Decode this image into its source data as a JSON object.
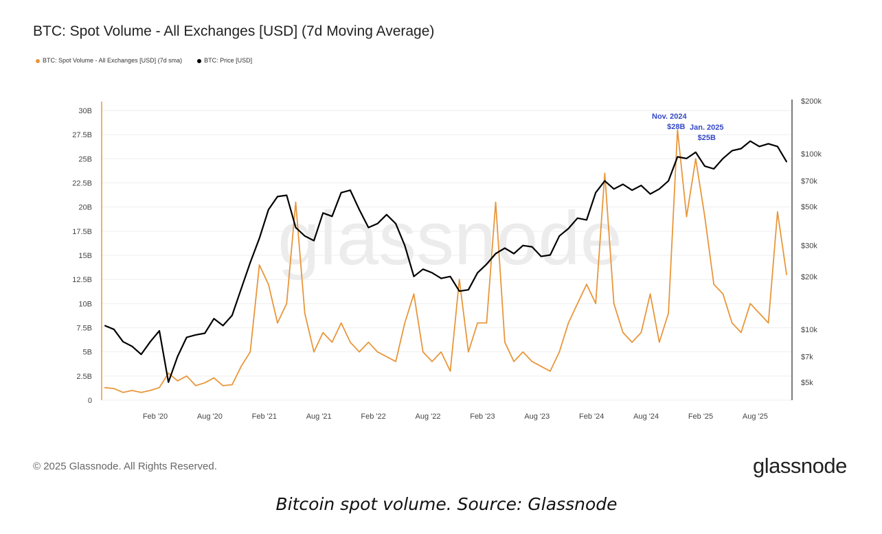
{
  "chart_data": {
    "type": "line",
    "title": "BTC: Spot Volume - All Exchanges [USD] (7d Moving Average)",
    "legend_position": "top-left",
    "grid": true,
    "watermark": "glassnode",
    "x_ticks": [
      "Feb '20",
      "Aug '20",
      "Feb '21",
      "Aug '21",
      "Feb '22",
      "Aug '22",
      "Feb '23",
      "Aug '23",
      "Feb '24",
      "Aug '24",
      "Feb '25",
      "Aug '25"
    ],
    "y_left": {
      "ticks": [
        "0",
        "2.5B",
        "5B",
        "7.5B",
        "10B",
        "12.5B",
        "15B",
        "17.5B",
        "20B",
        "22.5B",
        "25B",
        "27.5B",
        "30B"
      ],
      "range": [
        0,
        30
      ],
      "unit": "B USD"
    },
    "y_right": {
      "ticks": [
        "$5k",
        "$7k",
        "$10k",
        "$20k",
        "$30k",
        "$50k",
        "$70k",
        "$100k",
        "$200k"
      ],
      "scale": "log",
      "range": [
        4500,
        200000
      ]
    },
    "annotations": [
      {
        "date": "2024-11",
        "line1": "Nov. 2024",
        "line2": "$28B"
      },
      {
        "date": "2025-01",
        "line1": "Jan. 2025",
        "line2": "$25B"
      }
    ],
    "dates": [
      "2019-08",
      "2019-09",
      "2019-10",
      "2019-11",
      "2019-12",
      "2020-01",
      "2020-02",
      "2020-03",
      "2020-04",
      "2020-05",
      "2020-06",
      "2020-07",
      "2020-08",
      "2020-09",
      "2020-10",
      "2020-11",
      "2020-12",
      "2021-01",
      "2021-02",
      "2021-03",
      "2021-04",
      "2021-05",
      "2021-06",
      "2021-07",
      "2021-08",
      "2021-09",
      "2021-10",
      "2021-11",
      "2021-12",
      "2022-01",
      "2022-02",
      "2022-03",
      "2022-04",
      "2022-05",
      "2022-06",
      "2022-07",
      "2022-08",
      "2022-09",
      "2022-10",
      "2022-11",
      "2022-12",
      "2023-01",
      "2023-02",
      "2023-03",
      "2023-04",
      "2023-05",
      "2023-06",
      "2023-07",
      "2023-08",
      "2023-09",
      "2023-10",
      "2023-11",
      "2023-12",
      "2024-01",
      "2024-02",
      "2024-03",
      "2024-04",
      "2024-05",
      "2024-06",
      "2024-07",
      "2024-08",
      "2024-09",
      "2024-10",
      "2024-11",
      "2024-12",
      "2025-01",
      "2025-02",
      "2025-03",
      "2025-04",
      "2025-05",
      "2025-06",
      "2025-07",
      "2025-08",
      "2025-09",
      "2025-10",
      "2025-11"
    ],
    "series": [
      {
        "name": "BTC: Spot Volume - All Exchanges [USD] (7d sma)",
        "color": "#e8963a",
        "axis": "left",
        "values": [
          1.3,
          1.2,
          0.8,
          1.0,
          0.8,
          1.0,
          1.3,
          2.8,
          2.0,
          2.5,
          1.5,
          1.8,
          2.3,
          1.5,
          1.6,
          3.5,
          5.0,
          14,
          12,
          8,
          10,
          20.5,
          9,
          5,
          7,
          6,
          8,
          6,
          5,
          6,
          5,
          4.5,
          4,
          8,
          11,
          5,
          4,
          5,
          3,
          12.5,
          5,
          8,
          8,
          20.5,
          6,
          4,
          5,
          4,
          3.5,
          3,
          5,
          8,
          10,
          12,
          10,
          23.5,
          10,
          7,
          6,
          7,
          11,
          6,
          9,
          28,
          19,
          25,
          19,
          12,
          11,
          8,
          7,
          10,
          9,
          8,
          19.5,
          13
        ]
      },
      {
        "name": "BTC: Price [USD]",
        "color": "#000000",
        "axis": "right",
        "values": [
          10500,
          10000,
          8500,
          8000,
          7200,
          8500,
          9800,
          5000,
          7000,
          9000,
          9300,
          9500,
          11500,
          10500,
          12000,
          17000,
          24000,
          33000,
          48000,
          57000,
          58000,
          38000,
          34000,
          32000,
          46000,
          44000,
          60000,
          62000,
          48000,
          38000,
          40000,
          45000,
          40000,
          30000,
          20000,
          22000,
          21000,
          19500,
          20000,
          16500,
          16800,
          21000,
          23500,
          27000,
          29000,
          27000,
          30000,
          29500,
          26000,
          26500,
          34000,
          37500,
          43000,
          42000,
          60000,
          70000,
          63000,
          67000,
          62000,
          66000,
          59000,
          63000,
          70000,
          96000,
          94000,
          102000,
          85000,
          82000,
          94000,
          104000,
          107000,
          118000,
          110000,
          114000,
          110000,
          90000
        ]
      }
    ]
  },
  "footer": {
    "copyright": "© 2025 Glassnode. All Rights Reserved.",
    "logo": "glassnode",
    "caption": "Bitcoin spot volume. Source: Glassnode"
  }
}
